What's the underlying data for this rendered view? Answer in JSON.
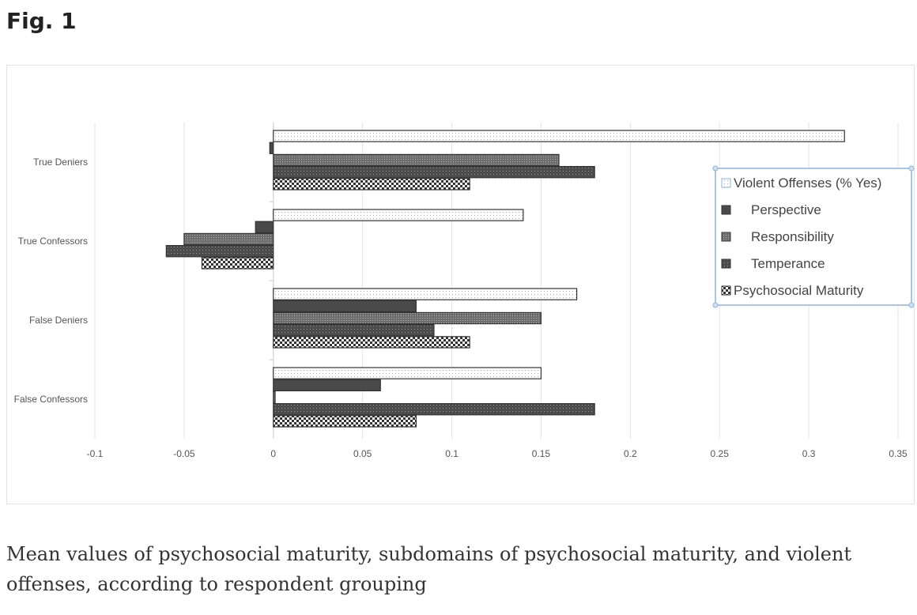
{
  "figure_label": "Fig. 1",
  "caption": "Mean values of psychosocial maturity, subdomains of psychosocial maturity, and violent offenses, according to respondent grouping",
  "chart_data": {
    "type": "bar",
    "orientation": "horizontal",
    "title": "",
    "xlabel": "",
    "ylabel": "",
    "categories": [
      "True Deniers",
      "True Confessors",
      "False Deniers",
      "False Confessors"
    ],
    "xlim": [
      -0.1,
      0.35
    ],
    "xticks": [
      -0.1,
      -0.05,
      0,
      0.05,
      0.1,
      0.15,
      0.2,
      0.25,
      0.3,
      0.35
    ],
    "xtick_labels": [
      "-0.1",
      "-0.05",
      "0",
      "0.05",
      "0.1",
      "0.15",
      "0.2",
      "0.25",
      "0.3",
      "0.35"
    ],
    "grid": "vertical",
    "legend_placement": "right",
    "series": [
      {
        "name": "Violent Offenses (% Yes)",
        "pattern": "light-dots",
        "color": "#ffffff",
        "values": [
          0.32,
          0.14,
          0.17,
          0.15
        ]
      },
      {
        "name": "Perspective",
        "pattern": "solid",
        "color": "#4a4a4a",
        "values": [
          -0.002,
          -0.01,
          0.08,
          0.06
        ]
      },
      {
        "name": "Responsibility",
        "pattern": "fine-dots",
        "color": "#7a7a7a",
        "values": [
          0.16,
          -0.05,
          0.15,
          0.001
        ]
      },
      {
        "name": "Temperance",
        "pattern": "dark-dots",
        "color": "#555555",
        "values": [
          0.18,
          -0.06,
          0.09,
          0.18
        ]
      },
      {
        "name": "Psychosocial Maturity",
        "pattern": "checker",
        "color": "#333333",
        "values": [
          0.11,
          -0.04,
          0.11,
          0.08
        ]
      }
    ]
  }
}
